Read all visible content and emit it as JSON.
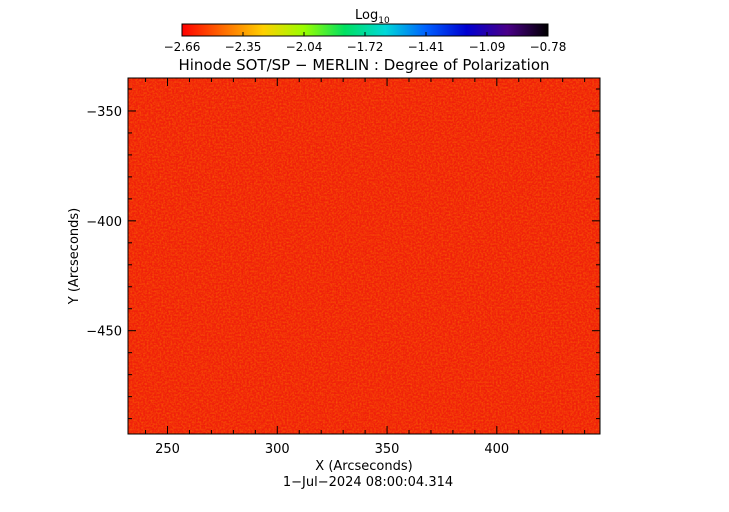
{
  "colorbar": {
    "label_main": "Log",
    "label_sub": "10",
    "ticks": [
      "−2.66",
      "−2.35",
      "−2.04",
      "−1.72",
      "−1.41",
      "−1.09",
      "−0.78"
    ],
    "range": [
      -2.66,
      -0.78
    ],
    "colormap": [
      "#ff0000",
      "#ff6a00",
      "#ffd000",
      "#9aff00",
      "#00e060",
      "#00d8d8",
      "#0060ff",
      "#0000d0",
      "#4a0088",
      "#000000"
    ]
  },
  "chart_data": {
    "type": "heatmap",
    "title": "Hinode SOT/SP − MERLIN : Degree of Polarization",
    "xlabel": "X (Arcseconds)",
    "ylabel": "Y (Arcseconds)",
    "xlim": [
      232,
      447
    ],
    "ylim": [
      -497,
      -335
    ],
    "x_ticks": [
      250,
      300,
      350,
      400
    ],
    "y_ticks": [
      -350,
      -400,
      -450
    ],
    "y_tick_labels": [
      "−350",
      "−400",
      "−450"
    ],
    "grid": false,
    "strong_polarization_regions": []
  },
  "footer": {
    "timestamp": "1−Jul−2024 08:00:04.314"
  }
}
